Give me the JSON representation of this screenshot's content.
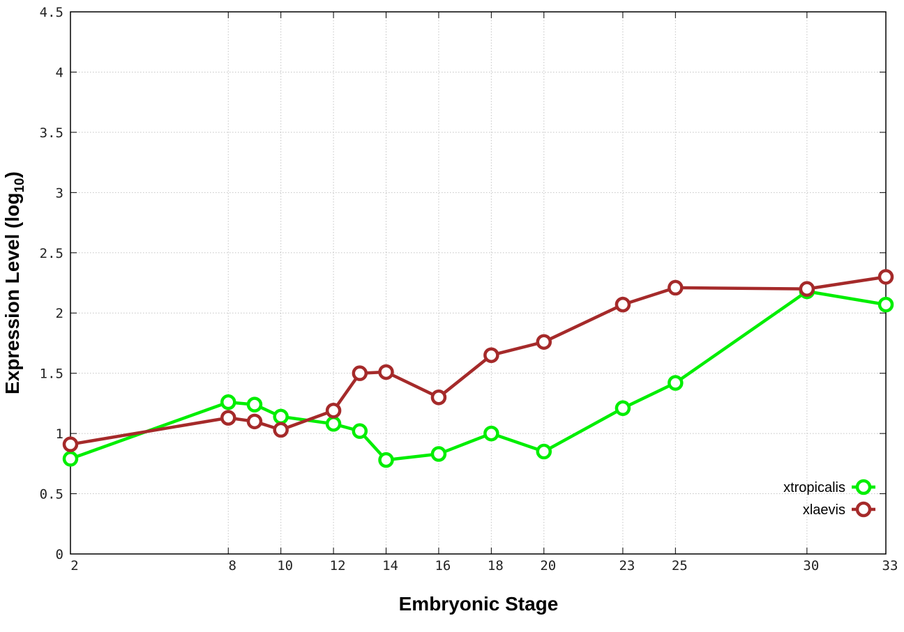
{
  "chart_data": {
    "type": "line",
    "xlabel": "Embryonic Stage",
    "ylabel_main": "Expression Level (log",
    "ylabel_sub": "10",
    "ylabel_close": ")",
    "ylim": [
      0,
      4.5
    ],
    "xlim": [
      2,
      33
    ],
    "x_ticks": [
      2,
      8,
      10,
      12,
      14,
      16,
      18,
      20,
      23,
      25,
      30,
      33
    ],
    "y_ticks": [
      0,
      0.5,
      1,
      1.5,
      2,
      2.5,
      3,
      3.5,
      4,
      4.5
    ],
    "y_tick_labels": [
      "0",
      "0.5",
      "1",
      "1.5",
      "2",
      "2.5",
      "3",
      "3.5",
      "4",
      "4.5"
    ],
    "grid": true,
    "legend_position": "bottom-right",
    "series": [
      {
        "name": "xtropicalis",
        "color": "#00ee00",
        "x": [
          2,
          8,
          9,
          10,
          12,
          13,
          14,
          16,
          18,
          20,
          23,
          25,
          30,
          33
        ],
        "y": [
          0.79,
          1.26,
          1.24,
          1.14,
          1.08,
          1.02,
          0.78,
          0.83,
          1.0,
          0.85,
          1.21,
          1.42,
          2.18,
          2.07
        ]
      },
      {
        "name": "xlaevis",
        "color": "#a52a2a",
        "x": [
          2,
          8,
          9,
          10,
          12,
          13,
          14,
          16,
          18,
          20,
          23,
          25,
          30,
          33
        ],
        "y": [
          0.91,
          1.13,
          1.1,
          1.03,
          1.19,
          1.5,
          1.51,
          1.3,
          1.65,
          1.76,
          2.07,
          2.21,
          2.2,
          2.3
        ]
      }
    ]
  }
}
